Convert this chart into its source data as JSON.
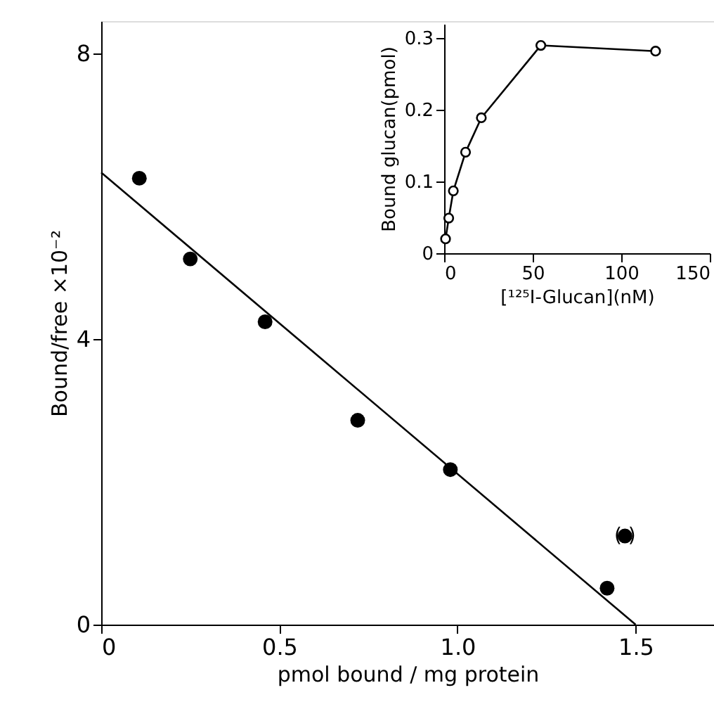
{
  "chart_data": [
    {
      "type": "scatter",
      "xlabel": "pmol bound / mg protein",
      "ylabel": "Bound/free ×10⁻²",
      "xlim": [
        0,
        1.72
      ],
      "ylim": [
        0,
        8.45
      ],
      "xticks": [
        0,
        0.5,
        {
          "value": 1,
          "label": "1.0"
        },
        1.5
      ],
      "yticks": [
        0,
        4,
        8
      ],
      "grid": false,
      "series": [
        {
          "type": "scatter",
          "color": "#000000",
          "marker": "circle",
          "x": [
            0.107,
            0.25,
            0.46,
            0.72,
            0.98,
            1.42,
            1.47
          ],
          "values": [
            6.25,
            5.12,
            4.24,
            2.86,
            2.17,
            0.51,
            1.24
          ]
        },
        {
          "type": "line",
          "color": "#000000",
          "marker": "none",
          "x": [
            0,
            1.5
          ],
          "values": [
            6.33,
            0
          ]
        }
      ],
      "annotations": [
        {
          "text": "(   )",
          "x": 1.47,
          "y": 1.24
        }
      ]
    },
    {
      "type": "line",
      "xlabel": "[¹²⁵I-Glucan](nM)",
      "ylabel": "Bound glucan(pmol)",
      "xlim": [
        0,
        150
      ],
      "ylim": [
        0,
        0.32
      ],
      "xticks": [
        0,
        50,
        100,
        150
      ],
      "yticks": [
        0,
        0.1,
        0.2,
        0.3
      ],
      "grid": false,
      "marker": "circle",
      "series": [
        {
          "color": "#000000",
          "x": [
            0.8,
            2.6,
            5.2,
            12.1,
            21,
            54.6,
            119.4
          ],
          "values": [
            0.02,
            0.049,
            0.087,
            0.141,
            0.189,
            0.29,
            0.282
          ]
        }
      ]
    }
  ]
}
